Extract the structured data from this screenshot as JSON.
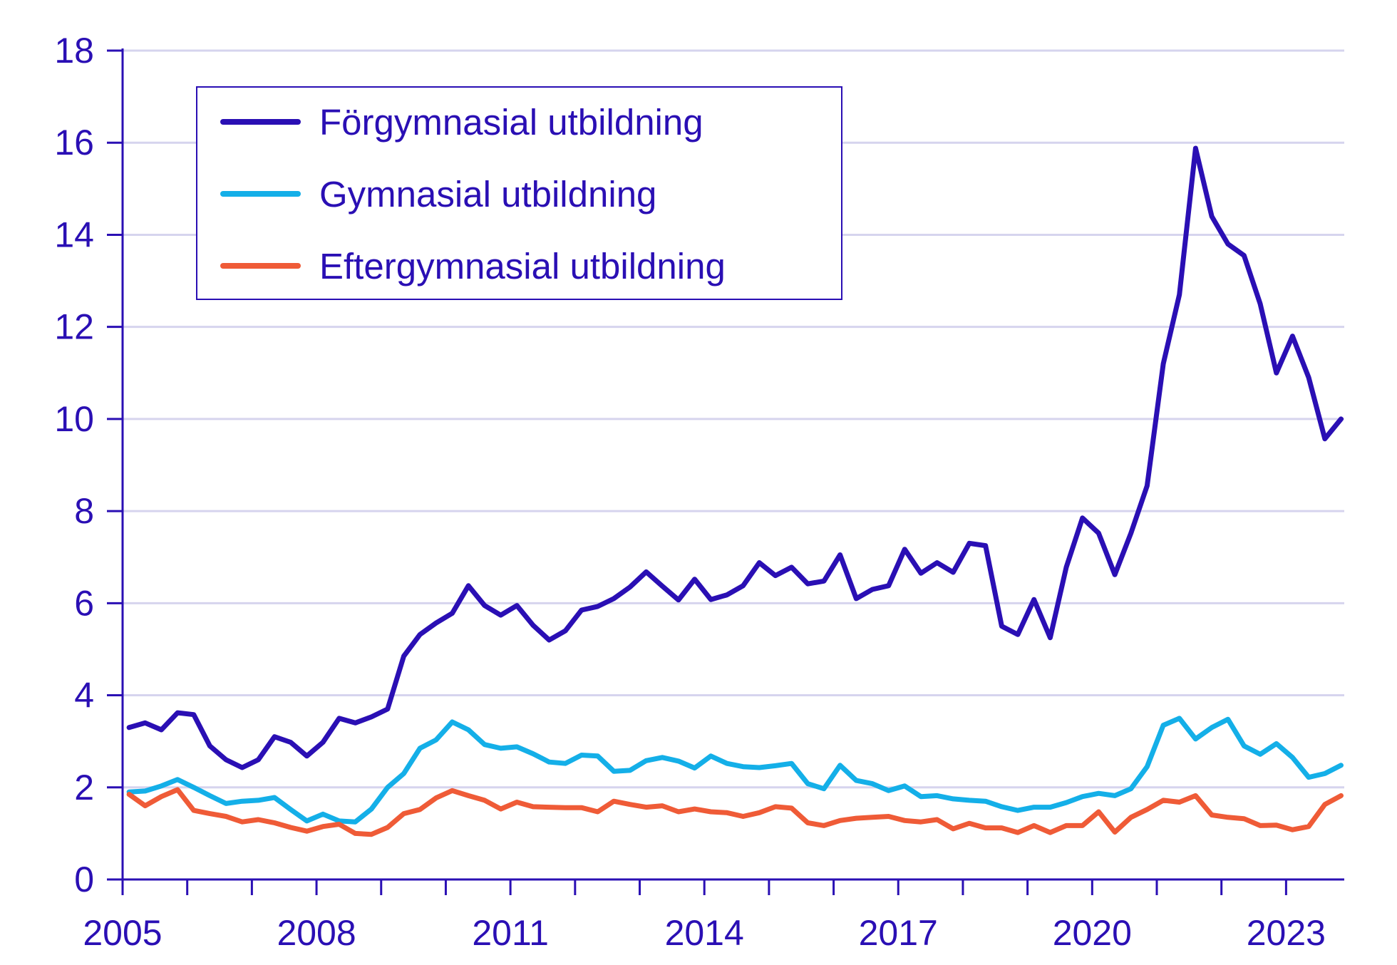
{
  "chart_data": {
    "type": "line",
    "title": "",
    "xlabel": "",
    "ylabel": "",
    "xlim": [
      2005,
      2023.9
    ],
    "ylim": [
      0,
      18
    ],
    "yticks": [
      0,
      2,
      4,
      6,
      8,
      10,
      12,
      14,
      16,
      18
    ],
    "xticks": [
      2005,
      2008,
      2011,
      2014,
      2017,
      2020,
      2023
    ],
    "x_start": 2005.1,
    "x_step": 0.25,
    "grid": true,
    "legend_position": "top-left",
    "series": [
      {
        "name": "Förgymnasial utbildning",
        "color": "#2a0fb4",
        "values": [
          3.3,
          3.4,
          3.25,
          3.62,
          3.58,
          2.9,
          2.6,
          2.43,
          2.6,
          3.1,
          2.98,
          2.68,
          2.98,
          3.5,
          3.4,
          3.53,
          3.7,
          4.85,
          5.32,
          5.57,
          5.78,
          6.38,
          5.95,
          5.74,
          5.95,
          5.52,
          5.2,
          5.4,
          5.85,
          5.93,
          6.1,
          6.35,
          6.68,
          6.37,
          6.07,
          6.52,
          6.08,
          6.18,
          6.38,
          6.88,
          6.6,
          6.78,
          6.42,
          6.48,
          7.05,
          6.1,
          6.3,
          6.38,
          7.17,
          6.65,
          6.88,
          6.67,
          7.3,
          7.25,
          5.5,
          5.32,
          6.08,
          5.25,
          6.78,
          7.85,
          7.52,
          6.62,
          7.52,
          8.55,
          11.2,
          12.7,
          15.88,
          14.4,
          13.8,
          13.55,
          12.5,
          11.0,
          11.8,
          10.9,
          9.57,
          10.0
        ]
      },
      {
        "name": "Gymnasial utbildning",
        "color": "#14afe8",
        "values": [
          1.9,
          1.92,
          2.03,
          2.17,
          2.0,
          1.82,
          1.65,
          1.7,
          1.72,
          1.78,
          1.52,
          1.27,
          1.42,
          1.27,
          1.25,
          1.53,
          2.0,
          2.3,
          2.85,
          3.03,
          3.42,
          3.25,
          2.93,
          2.85,
          2.88,
          2.73,
          2.55,
          2.52,
          2.7,
          2.68,
          2.35,
          2.37,
          2.58,
          2.65,
          2.57,
          2.42,
          2.68,
          2.52,
          2.45,
          2.43,
          2.47,
          2.52,
          2.08,
          1.97,
          2.48,
          2.15,
          2.08,
          1.93,
          2.03,
          1.8,
          1.82,
          1.75,
          1.72,
          1.7,
          1.58,
          1.5,
          1.57,
          1.57,
          1.67,
          1.8,
          1.87,
          1.82,
          1.97,
          2.45,
          3.35,
          3.5,
          3.05,
          3.3,
          3.48,
          2.9,
          2.72,
          2.95,
          2.65,
          2.22,
          2.3,
          2.48
        ]
      },
      {
        "name": "Eftergymnasial utbildning",
        "color": "#ef5b37",
        "values": [
          1.85,
          1.6,
          1.8,
          1.95,
          1.5,
          1.43,
          1.37,
          1.25,
          1.3,
          1.23,
          1.13,
          1.05,
          1.15,
          1.2,
          1.0,
          0.98,
          1.13,
          1.43,
          1.52,
          1.77,
          1.93,
          1.82,
          1.72,
          1.53,
          1.68,
          1.58,
          1.57,
          1.56,
          1.56,
          1.47,
          1.7,
          1.63,
          1.57,
          1.6,
          1.47,
          1.53,
          1.47,
          1.45,
          1.37,
          1.45,
          1.58,
          1.55,
          1.23,
          1.17,
          1.28,
          1.33,
          1.35,
          1.37,
          1.28,
          1.25,
          1.3,
          1.1,
          1.22,
          1.12,
          1.12,
          1.02,
          1.17,
          1.02,
          1.17,
          1.17,
          1.47,
          1.03,
          1.35,
          1.52,
          1.72,
          1.68,
          1.82,
          1.4,
          1.35,
          1.32,
          1.17,
          1.18,
          1.08,
          1.15,
          1.63,
          1.82
        ]
      }
    ]
  }
}
